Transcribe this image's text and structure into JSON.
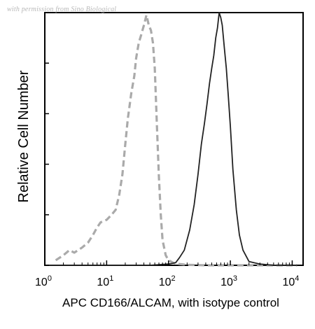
{
  "watermark": "with permission from Sino Biological",
  "chart_data": {
    "type": "line",
    "title": "",
    "xlabel": "APC CD166/ALCAM, with isotype control",
    "ylabel": "Relative Cell Number",
    "xscale": "log",
    "xlim": [
      1,
      15000
    ],
    "ylim": [
      0,
      100
    ],
    "x_ticks": [
      {
        "value": 1,
        "base": "10",
        "exp": "0"
      },
      {
        "value": 10,
        "base": "10",
        "exp": "1"
      },
      {
        "value": 100,
        "base": "10",
        "exp": "2"
      },
      {
        "value": 1000,
        "base": "10",
        "exp": "3"
      },
      {
        "value": 10000,
        "base": "10",
        "exp": "4"
      }
    ],
    "y_ticks": [
      0,
      20,
      40,
      60,
      80,
      100
    ],
    "grid": false,
    "legend": "none",
    "series": [
      {
        "style": "dashed",
        "color": "#aaaaaa",
        "x": [
          1.5,
          2,
          2.5,
          3,
          4,
          5,
          6,
          7,
          8,
          10,
          12,
          14,
          16,
          18,
          20,
          22,
          25,
          28,
          30,
          33,
          36,
          40,
          44,
          48,
          52,
          56,
          60,
          65,
          70,
          75,
          80,
          90,
          100,
          120,
          150,
          200,
          400,
          1000,
          12000
        ],
        "y": [
          2,
          4,
          6,
          5,
          7,
          9,
          12,
          15,
          17,
          18,
          20,
          22,
          28,
          36,
          48,
          58,
          68,
          75,
          82,
          88,
          91,
          95,
          99,
          95,
          93,
          88,
          78,
          55,
          35,
          20,
          10,
          4,
          2,
          1,
          0.5,
          0.2,
          0,
          0,
          0
        ]
      },
      {
        "style": "solid",
        "color": "#222222",
        "x": [
          1,
          50,
          100,
          130,
          150,
          180,
          220,
          260,
          300,
          340,
          380,
          420,
          460,
          500,
          540,
          580,
          620,
          660,
          700,
          740,
          800,
          860,
          920,
          1000,
          1100,
          1250,
          1400,
          1600,
          2000,
          3000,
          5000,
          12000
        ],
        "y": [
          0,
          0,
          0.5,
          1,
          3,
          6,
          14,
          24,
          36,
          48,
          56,
          64,
          72,
          78,
          83,
          90,
          94,
          100,
          98,
          95,
          86,
          78,
          68,
          55,
          38,
          22,
          12,
          6,
          1.5,
          0.5,
          0,
          0
        ]
      }
    ]
  }
}
